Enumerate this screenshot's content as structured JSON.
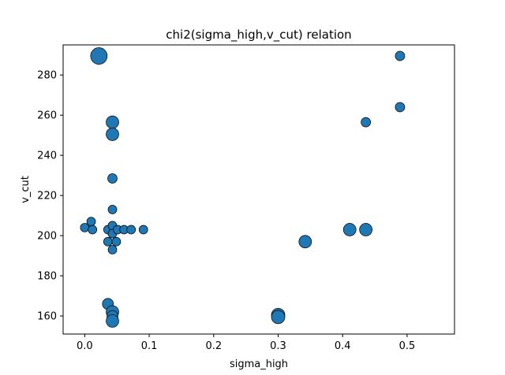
{
  "chart_data": {
    "type": "scatter",
    "title": "chi2(sigma_high,v_cut) relation",
    "xlabel": "sigma_high",
    "ylabel": "v_cut",
    "xlim": [
      -0.0335,
      0.5735
    ],
    "ylim": [
      151,
      295
    ],
    "grid": false,
    "x_ticks": [
      0.0,
      0.1,
      0.2,
      0.3,
      0.4,
      0.5
    ],
    "x_tick_labels": [
      "0.0",
      "0.1",
      "0.2",
      "0.3",
      "0.4",
      "0.5"
    ],
    "y_ticks": [
      160,
      180,
      200,
      220,
      240,
      260,
      280
    ],
    "y_tick_labels": [
      "160",
      "180",
      "200",
      "220",
      "240",
      "260",
      "280"
    ],
    "marker_color": "#1f77b4",
    "marker_edge_color": "#000000",
    "points": [
      {
        "x": 0.022,
        "y": 289.5,
        "size": 3.4
      },
      {
        "x": 0.043,
        "y": 256.5,
        "size": 2.4
      },
      {
        "x": 0.043,
        "y": 250.5,
        "size": 2.4
      },
      {
        "x": 0.043,
        "y": 228.5,
        "size": 1.6
      },
      {
        "x": 0.043,
        "y": 213.0,
        "size": 1.4
      },
      {
        "x": 0.0,
        "y": 204.0,
        "size": 1.4
      },
      {
        "x": 0.01,
        "y": 207.0,
        "size": 1.4
      },
      {
        "x": 0.012,
        "y": 203.0,
        "size": 1.4
      },
      {
        "x": 0.036,
        "y": 203.0,
        "size": 1.4
      },
      {
        "x": 0.043,
        "y": 205.0,
        "size": 1.4
      },
      {
        "x": 0.043,
        "y": 201.0,
        "size": 1.4
      },
      {
        "x": 0.051,
        "y": 203.0,
        "size": 1.4
      },
      {
        "x": 0.061,
        "y": 203.0,
        "size": 1.4
      },
      {
        "x": 0.072,
        "y": 203.0,
        "size": 1.4
      },
      {
        "x": 0.091,
        "y": 203.0,
        "size": 1.4
      },
      {
        "x": 0.036,
        "y": 197.0,
        "size": 1.4
      },
      {
        "x": 0.049,
        "y": 197.0,
        "size": 1.4
      },
      {
        "x": 0.043,
        "y": 193.0,
        "size": 1.4
      },
      {
        "x": 0.036,
        "y": 166.0,
        "size": 2.0
      },
      {
        "x": 0.043,
        "y": 162.0,
        "size": 2.4
      },
      {
        "x": 0.043,
        "y": 160.0,
        "size": 2.0
      },
      {
        "x": 0.043,
        "y": 157.5,
        "size": 2.4
      },
      {
        "x": 0.3,
        "y": 160.5,
        "size": 2.6
      },
      {
        "x": 0.3,
        "y": 159.5,
        "size": 2.6
      },
      {
        "x": 0.342,
        "y": 197.0,
        "size": 2.4
      },
      {
        "x": 0.411,
        "y": 203.0,
        "size": 2.4
      },
      {
        "x": 0.436,
        "y": 203.0,
        "size": 2.4
      },
      {
        "x": 0.436,
        "y": 256.5,
        "size": 1.6
      },
      {
        "x": 0.489,
        "y": 289.5,
        "size": 1.6
      },
      {
        "x": 0.489,
        "y": 264.0,
        "size": 1.6
      }
    ]
  }
}
